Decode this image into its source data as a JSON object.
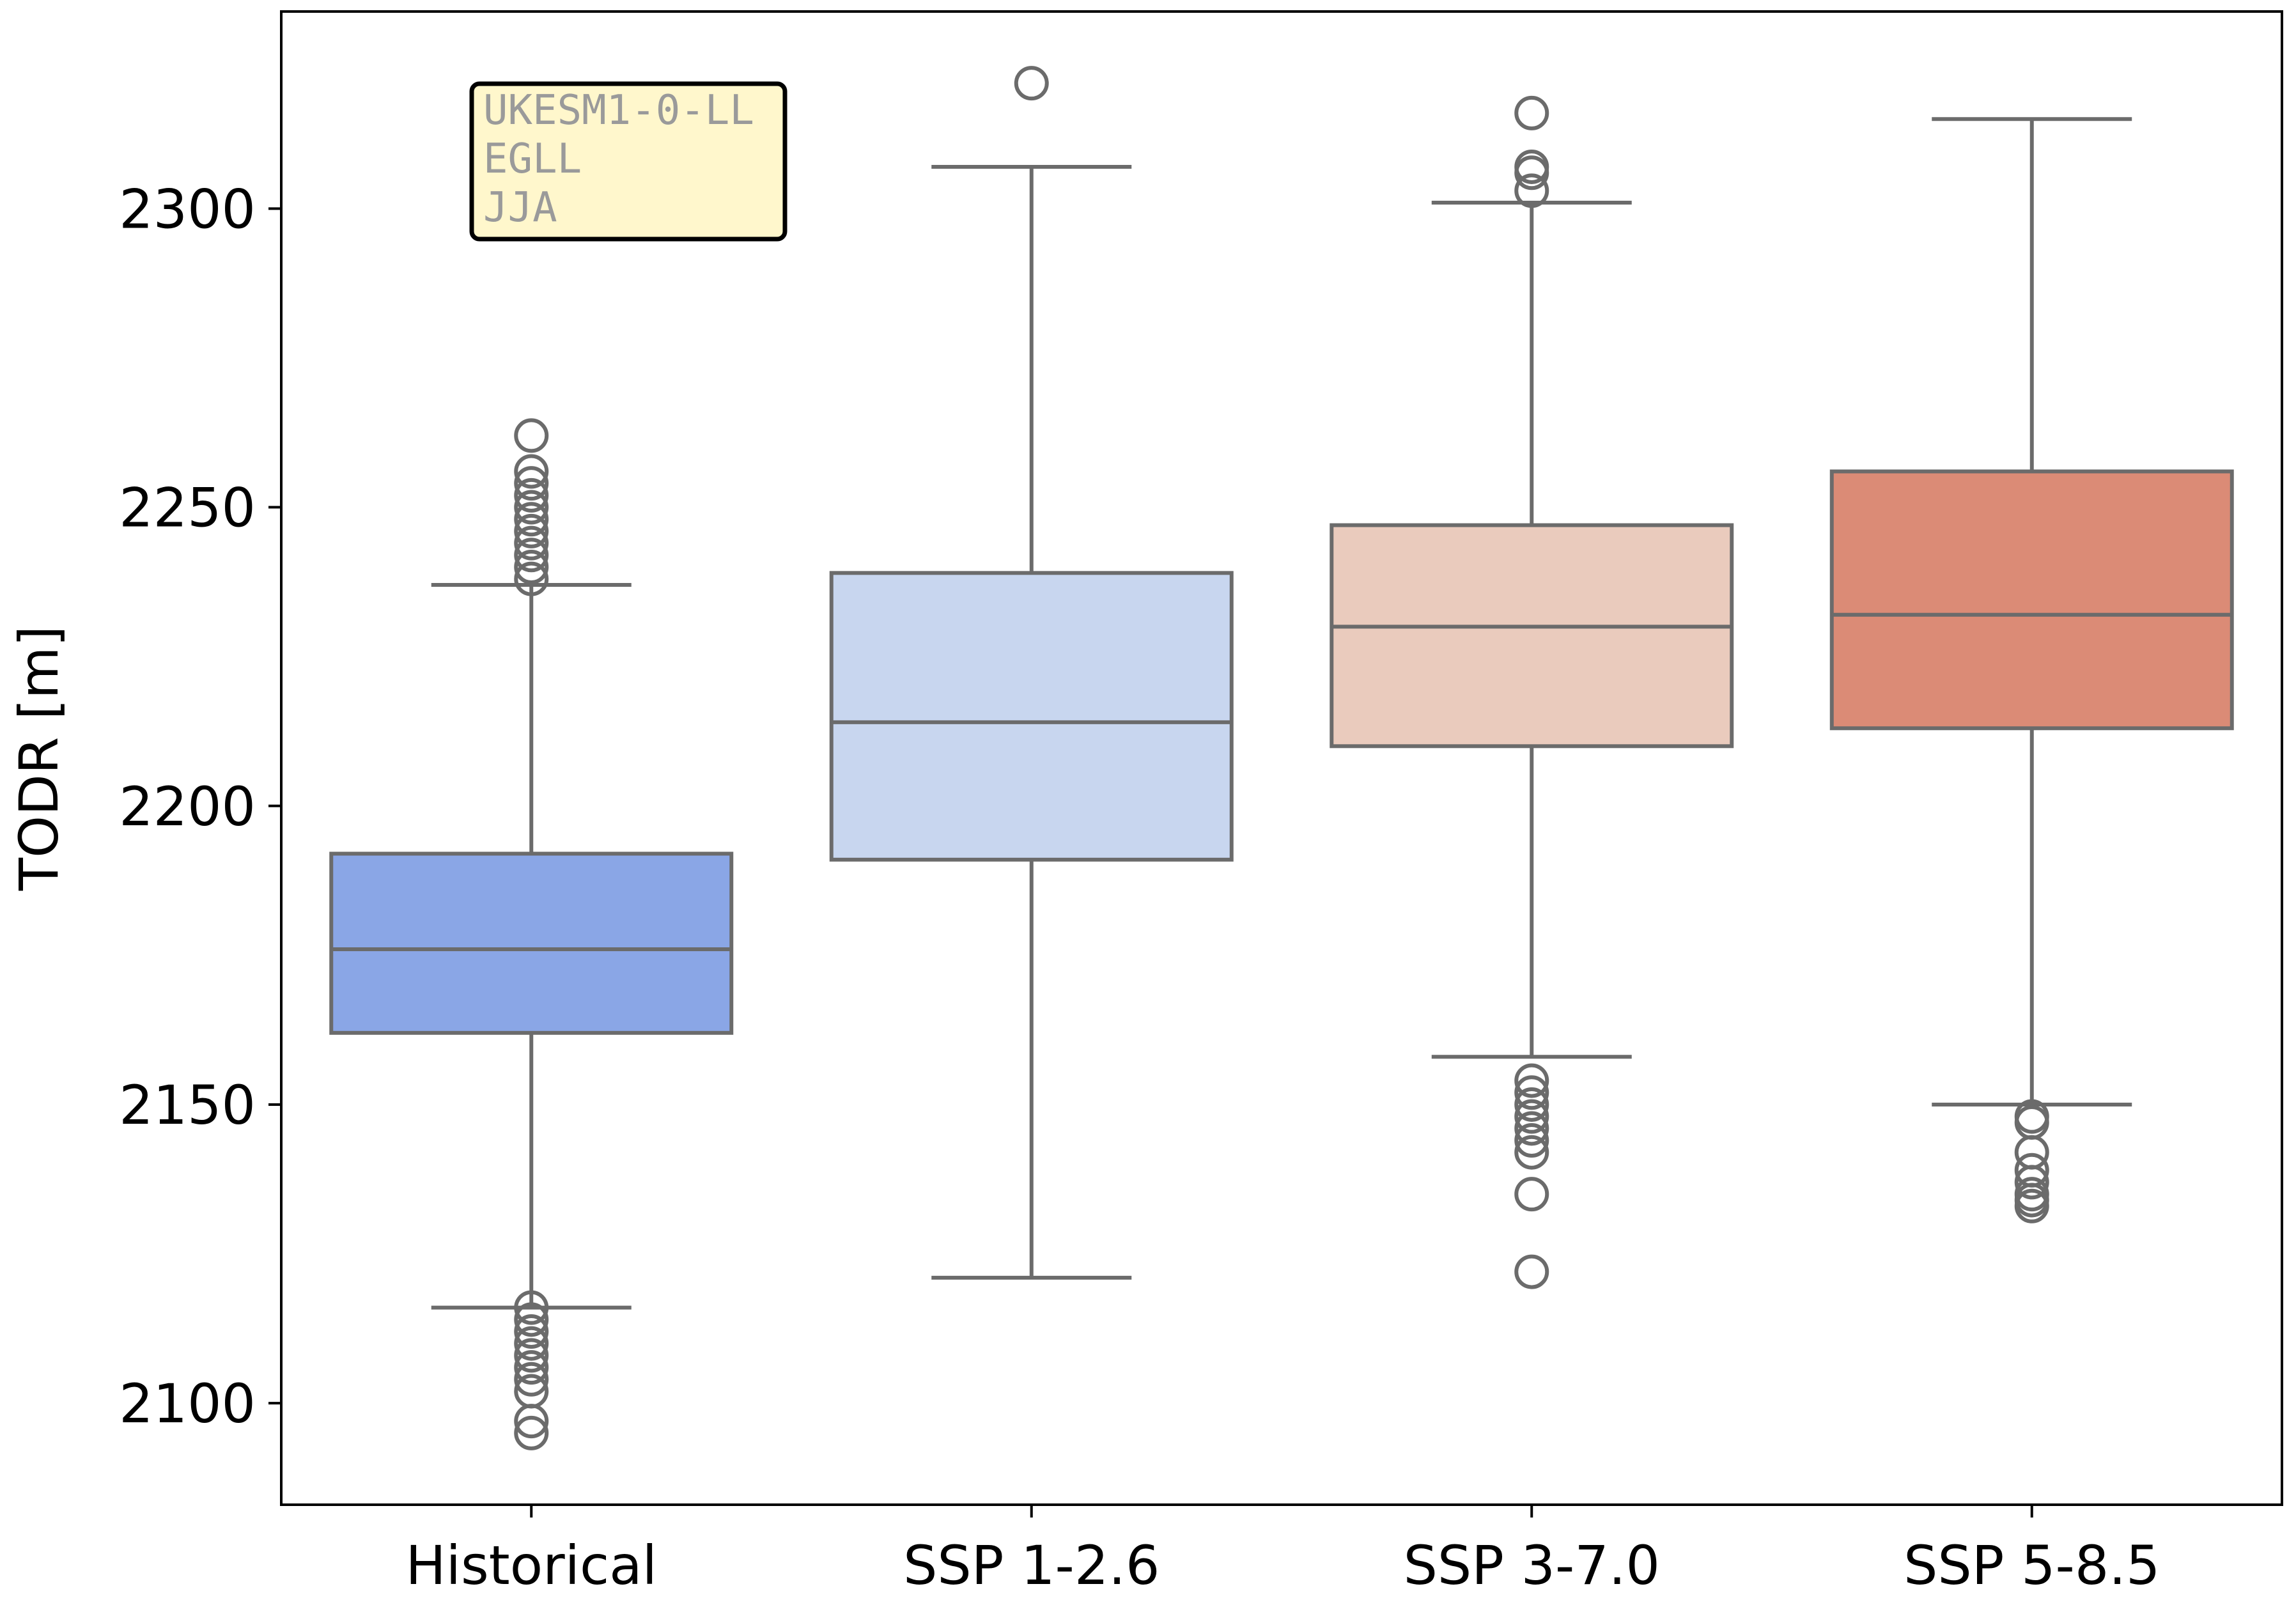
{
  "chart_data": {
    "type": "boxplot",
    "title": "",
    "xlabel": "",
    "ylabel": "TODR [m]",
    "ylim": [
      2083,
      2333
    ],
    "yticks": [
      2100,
      2150,
      2200,
      2250,
      2300
    ],
    "grid": false,
    "annotation": {
      "lines": [
        "UKESM1-0-LL",
        "EGLL",
        "JJA"
      ],
      "background": "#fff7cc",
      "border": "#000000"
    },
    "style": {
      "line_color": "#6b6b6b",
      "axis_color": "#000000"
    },
    "categories": [
      "Historical",
      "SSP 1-2.6",
      "SSP 3-7.0",
      "SSP 5-8.5"
    ],
    "series": [
      {
        "name": "Historical",
        "color": "#8aa6e6",
        "whisker_low": 2116,
        "q1": 2162,
        "median": 2176,
        "q3": 2192,
        "whisker_high": 2237,
        "outliers": [
          2262,
          2256,
          2254,
          2252,
          2250,
          2248,
          2246,
          2244,
          2242,
          2240,
          2238,
          2116,
          2114,
          2112,
          2110,
          2108,
          2106,
          2104,
          2102,
          2097,
          2095
        ]
      },
      {
        "name": "SSP 1-2.6",
        "color": "#c8d6ef",
        "whisker_low": 2121,
        "q1": 2191,
        "median": 2214,
        "q3": 2239,
        "whisker_high": 2307,
        "outliers": [
          2321
        ]
      },
      {
        "name": "SSP 3-7.0",
        "color": "#eacbbd",
        "whisker_low": 2158,
        "q1": 2210,
        "median": 2230,
        "q3": 2247,
        "whisker_high": 2301,
        "outliers": [
          2316,
          2307,
          2306,
          2303,
          2154,
          2152,
          2150,
          2148,
          2146,
          2144,
          2142,
          2135,
          2122
        ]
      },
      {
        "name": "SSP 5-8.5",
        "color": "#db8b76",
        "whisker_low": 2150,
        "q1": 2213,
        "median": 2232,
        "q3": 2256,
        "whisker_high": 2315,
        "outliers": [
          2148,
          2147,
          2142,
          2139,
          2137,
          2135,
          2134,
          2133
        ]
      }
    ]
  }
}
